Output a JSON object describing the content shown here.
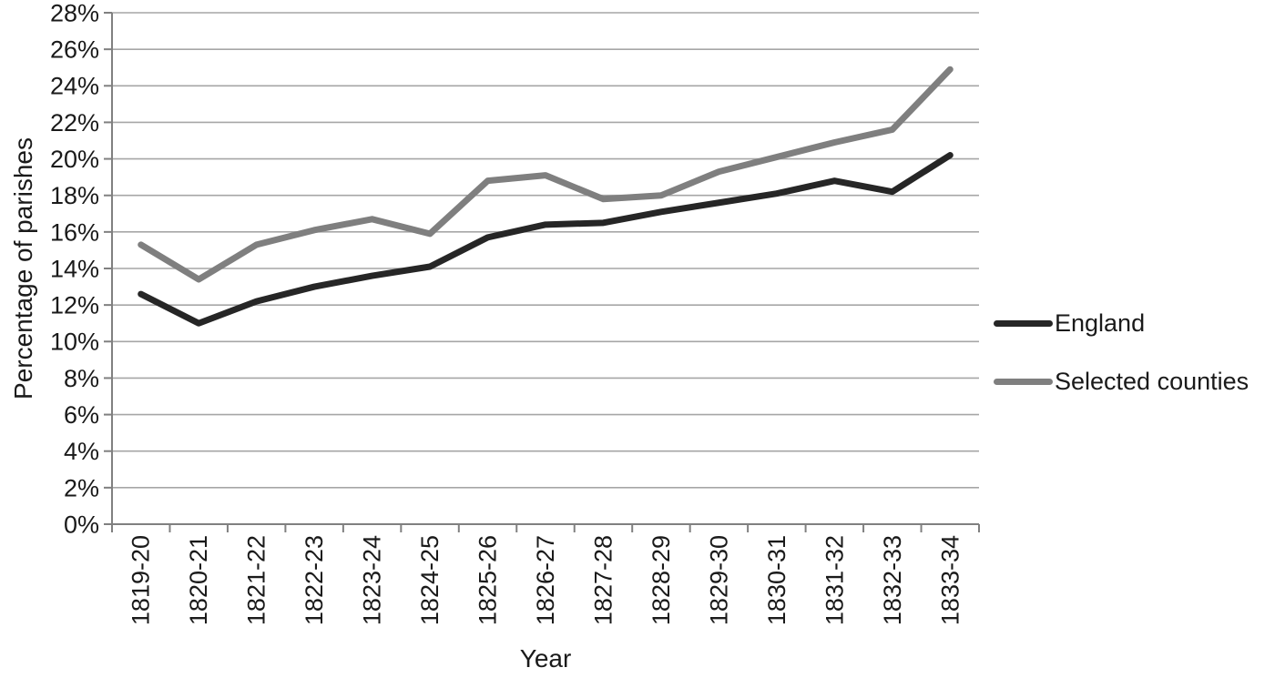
{
  "chart_data": {
    "type": "line",
    "title": "",
    "xlabel": "Year",
    "ylabel": "Percentage of parishes",
    "categories": [
      "1819-20",
      "1820-21",
      "1821-22",
      "1822-23",
      "1823-24",
      "1824-25",
      "1825-26",
      "1826-27",
      "1827-28",
      "1828-29",
      "1829-30",
      "1830-31",
      "1831-32",
      "1832-33",
      "1833-34"
    ],
    "series": [
      {
        "name": "England",
        "color": "#262626",
        "values": [
          12.6,
          11.0,
          12.2,
          13.0,
          13.6,
          14.1,
          15.7,
          16.4,
          16.5,
          17.1,
          17.6,
          18.1,
          18.8,
          18.2,
          20.2
        ]
      },
      {
        "name": "Selected counties",
        "color": "#7f7f7f",
        "values": [
          15.3,
          13.4,
          15.3,
          16.1,
          16.7,
          15.9,
          18.8,
          19.1,
          17.8,
          18.0,
          19.3,
          20.1,
          20.9,
          21.6,
          24.9
        ]
      }
    ],
    "y_axis": {
      "min": 0,
      "max": 28,
      "step": 2,
      "tick_labels": [
        "0%",
        "2%",
        "4%",
        "6%",
        "8%",
        "10%",
        "12%",
        "14%",
        "16%",
        "18%",
        "20%",
        "22%",
        "24%",
        "26%",
        "28%"
      ]
    },
    "grid": true,
    "legend_position": "right"
  },
  "colors": {
    "gridline": "#a6a6a6",
    "axis": "#808080",
    "text": "#1a1a1a",
    "background": "#ffffff"
  }
}
